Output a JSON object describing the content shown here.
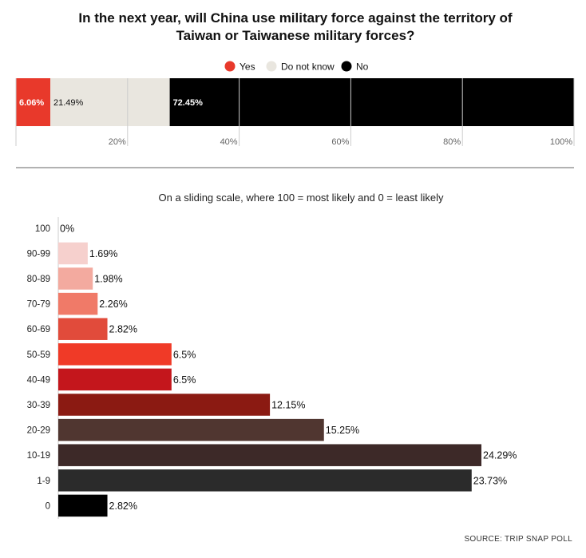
{
  "chart_data": [
    {
      "type": "bar",
      "orientation": "horizontal-stacked",
      "title": "In the next year, will China use military force against the territory of Taiwan or Taiwanese military forces?",
      "series": [
        {
          "name": "Yes",
          "value": 6.06,
          "label": "6.06%",
          "color": "#e8392b"
        },
        {
          "name": "Do not know",
          "value": 21.49,
          "label": "21.49%",
          "color": "#e9e6df"
        },
        {
          "name": "No",
          "value": 72.45,
          "label": "72.45%",
          "color": "#000000"
        }
      ],
      "xlim": [
        0,
        100
      ],
      "ticks": [
        {
          "value": 20,
          "label": "20%"
        },
        {
          "value": 40,
          "label": "40%"
        },
        {
          "value": 60,
          "label": "60%"
        },
        {
          "value": 80,
          "label": "80%"
        },
        {
          "value": 100,
          "label": "100%"
        }
      ],
      "legend_position": "top-center",
      "grid": true
    },
    {
      "type": "bar",
      "orientation": "horizontal",
      "title": "On a sliding scale, where 100 = most likely and 0 = least likely",
      "categories": [
        "100",
        "90-99",
        "80-89",
        "70-79",
        "60-69",
        "50-59",
        "40-49",
        "30-39",
        "20-29",
        "10-19",
        "1-9",
        "0"
      ],
      "values": [
        0,
        1.69,
        1.98,
        2.26,
        2.82,
        6.5,
        6.5,
        12.15,
        15.25,
        24.29,
        23.73,
        2.82
      ],
      "labels": [
        "0%",
        "1.69%",
        "1.98%",
        "2.26%",
        "2.82%",
        "6.5%",
        "6.5%",
        "12.15%",
        "15.25%",
        "24.29%",
        "23.73%",
        "2.82%"
      ],
      "colors": [
        "#f6d0cd",
        "#f6d0cd",
        "#f3aa9f",
        "#f07a68",
        "#e14b3b",
        "#f03a27",
        "#c4161c",
        "#8b1a12",
        "#503630",
        "#3d2928",
        "#2b2b2b",
        "#000000"
      ],
      "xlim": [
        0,
        25
      ]
    }
  ],
  "source": "SOURCE: TRIP SNAP POLL"
}
